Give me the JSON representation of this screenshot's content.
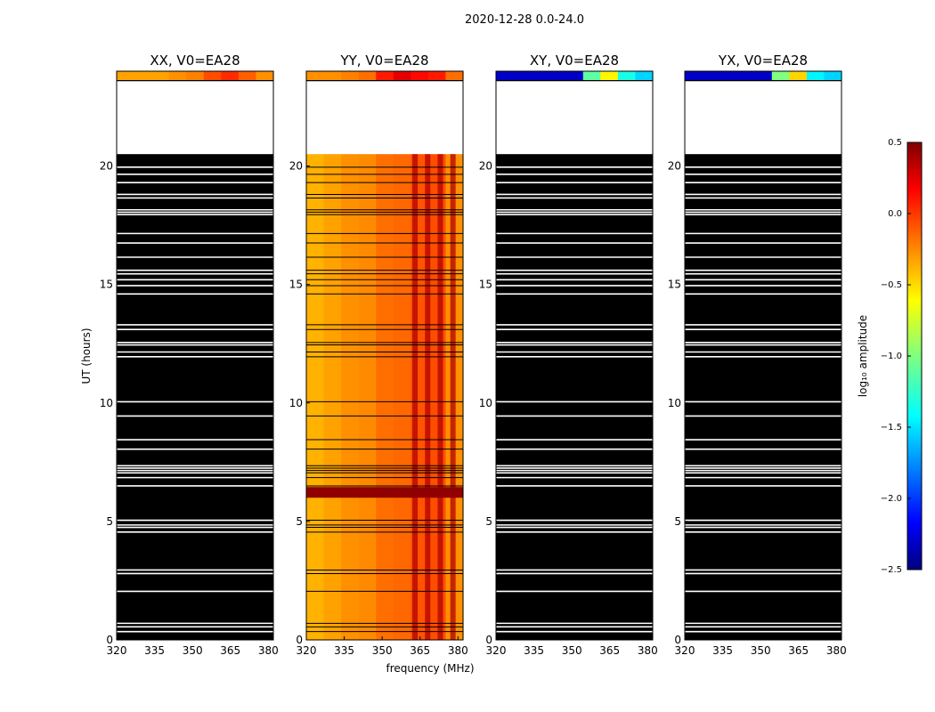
{
  "chart_data": {
    "type": "heatmap",
    "title": "2020-12-28 0.0-24.0",
    "xlabel": "frequency (MHz)",
    "ylabel": "UT (hours)",
    "xlim": [
      320,
      382
    ],
    "ylim": [
      0,
      24
    ],
    "xticks": [
      "320",
      "335",
      "350",
      "365",
      "380"
    ],
    "yticks": [
      "0",
      "5",
      "10",
      "15",
      "20"
    ],
    "colorbar": {
      "label": "log₁₀ amplitude",
      "range": [
        -2.5,
        0.5
      ],
      "ticks": [
        "0.5",
        "0.0",
        "−0.5",
        "−1.0",
        "−1.5",
        "−2.0",
        "−2.5"
      ]
    },
    "data_coverage_hours": [
      0,
      20.5
    ],
    "top_strip_hours": [
      23.6,
      24.0
    ],
    "panels": [
      {
        "name": "XX, V0=EA28",
        "key": "xx",
        "strip_log_amplitude": [
          -0.35,
          -0.35,
          -0.35,
          -0.3,
          -0.25,
          -0.1,
          0.0,
          -0.15,
          -0.3
        ],
        "body": "flagged",
        "bright_columns_mhz": []
      },
      {
        "name": "YY, V0=EA28",
        "key": "yy",
        "strip_log_amplitude": [
          -0.3,
          -0.3,
          -0.25,
          -0.2,
          0.05,
          0.2,
          0.1,
          0.05,
          -0.2
        ],
        "body": "data",
        "body_log_amplitude": [
          -0.4,
          -0.35,
          -0.3,
          -0.28,
          -0.2,
          -0.18,
          -0.12,
          -0.1,
          -0.3
        ],
        "bright_columns_mhz": [
          363,
          368,
          373,
          378
        ]
      },
      {
        "name": "XY, V0=EA28",
        "key": "xy",
        "strip_log_amplitude": [
          -2.3,
          -2.3,
          -2.3,
          -2.3,
          -2.3,
          -1.1,
          -0.6,
          -1.3,
          -1.5
        ],
        "body": "flagged",
        "bright_columns_mhz": []
      },
      {
        "name": "YX, V0=EA28",
        "key": "yx",
        "strip_log_amplitude": [
          -2.3,
          -2.3,
          -2.3,
          -2.3,
          -2.3,
          -1.0,
          -0.5,
          -1.4,
          -1.5
        ],
        "body": "flagged",
        "bright_columns_mhz": []
      }
    ],
    "flagged_rows_hours": [
      0.35,
      0.55,
      0.7,
      2.05,
      2.8,
      2.95,
      4.55,
      4.75,
      4.85,
      5.05,
      6.5,
      6.85,
      7.05,
      7.15,
      7.25,
      7.35,
      8.05,
      8.45,
      9.45,
      10.05,
      11.95,
      12.15,
      12.45,
      12.55,
      13.1,
      13.3,
      14.6,
      14.95,
      15.2,
      15.45,
      15.6,
      16.15,
      16.75,
      17.15,
      17.95,
      18.05,
      18.15,
      18.65,
      18.8,
      19.3,
      19.65,
      19.95
    ]
  }
}
